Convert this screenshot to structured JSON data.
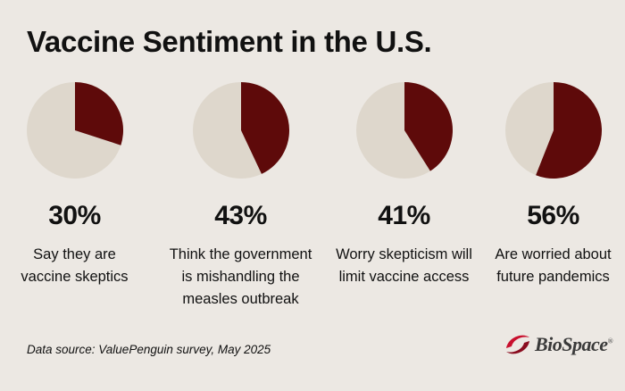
{
  "title": "Vaccine Sentiment in the U.S.",
  "source": "Data source: ValuePenguin survey, May 2025",
  "logo": {
    "text": "BioSpace",
    "mark": "®",
    "icon": "biospace-swirl-logo"
  },
  "colors": {
    "fill": "#5e0a0a",
    "remainder": "#ded7cc",
    "background": "#ece8e3"
  },
  "chart_data": {
    "type": "pie",
    "unit": "%",
    "charts": [
      {
        "value": 30,
        "label": "30%",
        "caption": "Say they are\nvaccine skeptics"
      },
      {
        "value": 43,
        "label": "43%",
        "caption": "Think the government\nis mishandling the\nmeasles outbreak"
      },
      {
        "value": 41,
        "label": "41%",
        "caption": "Worry skepticism will\nlimit vaccine access"
      },
      {
        "value": 56,
        "label": "56%",
        "caption": "Are worried about\nfuture pandemics"
      }
    ]
  }
}
